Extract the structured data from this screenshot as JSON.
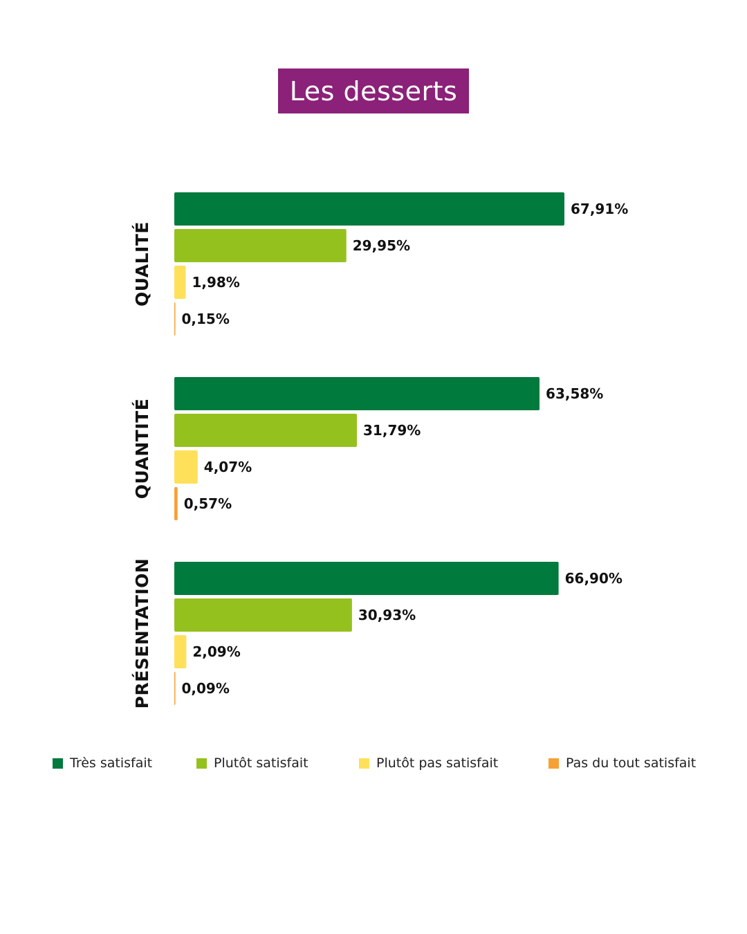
{
  "title": "Les desserts",
  "colors": {
    "title_bg": "#8b2178",
    "series": [
      "#007a3d",
      "#95c11f",
      "#ffe05a",
      "#f7a035"
    ]
  },
  "legend": [
    {
      "label": "Très satisfait"
    },
    {
      "label": "Plutôt satisfait"
    },
    {
      "label": "Plutôt pas satisfait"
    },
    {
      "label": "Pas du tout satisfait"
    }
  ],
  "chart_data": {
    "type": "bar",
    "orientation": "horizontal",
    "title": "Les desserts",
    "xlabel": "",
    "ylabel": "",
    "xlim": [
      0,
      100
    ],
    "grid": false,
    "legend_position": "bottom",
    "categories": [
      "QUALITÉ",
      "QUANTITÉ",
      "PRÉSENTATION"
    ],
    "series": [
      {
        "name": "Très satisfait",
        "values": [
          67.91,
          63.58,
          66.9
        ],
        "labels": [
          "67,91%",
          "63,58%",
          "66,90%"
        ]
      },
      {
        "name": "Plutôt satisfait",
        "values": [
          29.95,
          31.79,
          30.93
        ],
        "labels": [
          "29,95%",
          "31,79%",
          "30,93%"
        ]
      },
      {
        "name": "Plutôt pas satisfait",
        "values": [
          1.98,
          4.07,
          2.09
        ],
        "labels": [
          "1,98%",
          "4,07%",
          "2,09%"
        ]
      },
      {
        "name": "Pas du tout satisfait",
        "values": [
          0.15,
          0.57,
          0.09
        ],
        "labels": [
          "0,15%",
          "0,57%",
          "0,09%"
        ]
      }
    ]
  }
}
